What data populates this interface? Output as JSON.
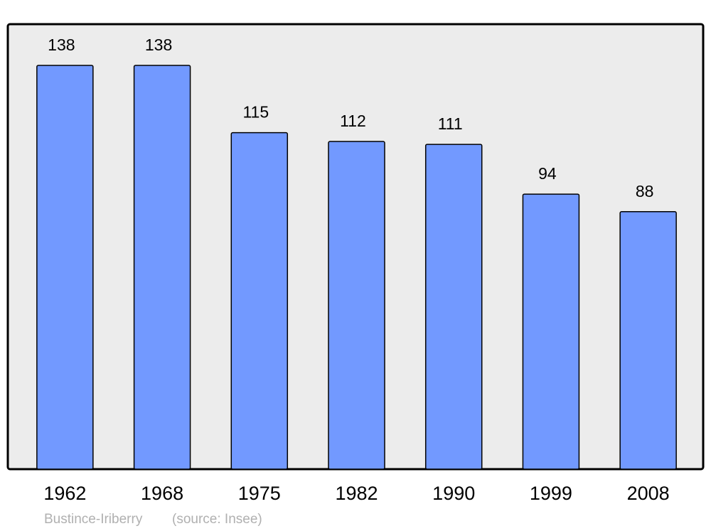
{
  "chart_data": {
    "type": "bar",
    "categories": [
      "1962",
      "1968",
      "1975",
      "1982",
      "1990",
      "1999",
      "2008"
    ],
    "values": [
      138,
      138,
      115,
      112,
      111,
      94,
      88
    ],
    "color": "#7299ff",
    "caption": "Bustince-Iriberry",
    "source": "(source: Insee)"
  }
}
